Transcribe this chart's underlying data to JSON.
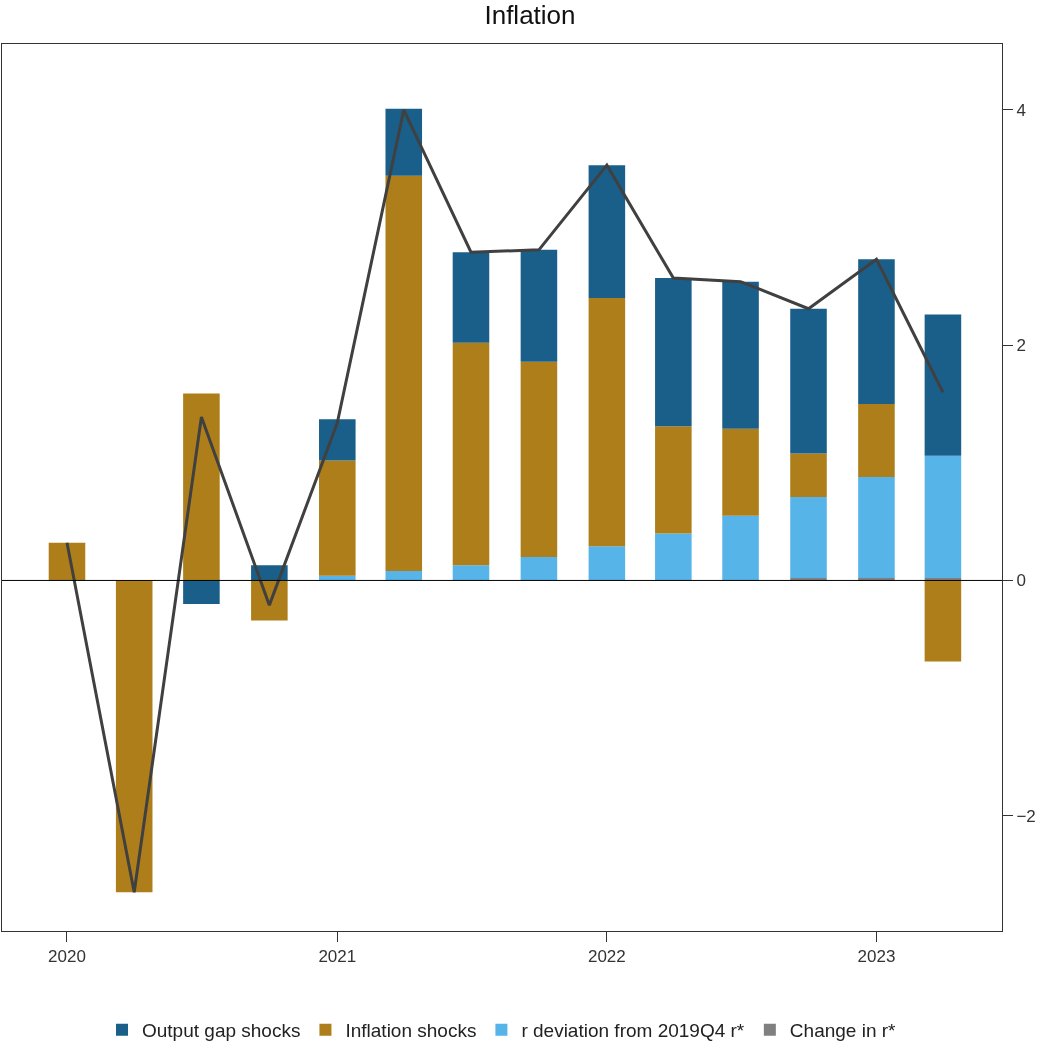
{
  "chart_data": {
    "type": "bar",
    "title": "Inflation",
    "stacked": true,
    "legend": "bottom",
    "grid": false,
    "x": [
      "2020-01",
      "2020-04",
      "2020-07",
      "2020-10",
      "2021-01",
      "2021-04",
      "2021-07",
      "2021-10",
      "2022-01",
      "2022-04",
      "2022-07",
      "2022-10",
      "2023-01",
      "2023-04"
    ],
    "xlim": [
      "2019-10-05",
      "2023-06-20"
    ],
    "xticks": [
      {
        "value": "2020-01",
        "label": "2020"
      },
      {
        "value": "2021-01",
        "label": "2021"
      },
      {
        "value": "2022-01",
        "label": "2022"
      },
      {
        "value": "2023-01",
        "label": "2023"
      }
    ],
    "ylim": [
      -2.98,
      4.56
    ],
    "yticks": [
      {
        "value": -2,
        "label": "−2"
      },
      0,
      2,
      4
    ],
    "ref_lines": [
      {
        "axis": "y",
        "value": 0,
        "color": "#000000"
      }
    ],
    "series": [
      {
        "name": "Change in r*",
        "color": "#808080",
        "values": [
          0,
          0,
          0,
          0,
          0,
          0,
          0,
          0,
          0,
          0,
          0,
          0.02,
          0.02,
          0.02
        ]
      },
      {
        "name": "r deviation from 2019Q4 r*",
        "color": "#56b4e9",
        "values": [
          0,
          0,
          0,
          0,
          0.04,
          0.08,
          0.13,
          0.2,
          0.29,
          0.4,
          0.55,
          0.69,
          0.86,
          1.04
        ]
      },
      {
        "name": "Inflation shocks",
        "color": "#ae7e1a",
        "values": [
          0.32,
          -2.65,
          1.59,
          -0.34,
          0.98,
          3.36,
          1.89,
          1.66,
          2.11,
          0.91,
          0.74,
          0.37,
          0.62,
          -0.69
        ]
      },
      {
        "name": "Output gap shocks",
        "color": "#1a5f8a",
        "values": [
          0,
          0,
          -0.2,
          0.13,
          0.35,
          0.57,
          0.77,
          0.95,
          1.13,
          1.26,
          1.25,
          1.23,
          1.23,
          1.2
        ]
      },
      {
        "type": "line",
        "color": "#404040",
        "values": [
          0.32,
          -2.65,
          1.39,
          -0.21,
          1.34,
          4.0,
          2.79,
          2.81,
          3.53,
          2.57,
          2.54,
          2.31,
          2.73,
          1.6
        ]
      }
    ]
  }
}
